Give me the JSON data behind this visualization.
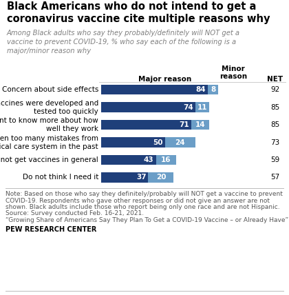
{
  "title": "Black Americans who do not intend to get a\ncoronavirus vaccine cite multiple reasons why",
  "subtitle": "Among Black adults who say they probably/definitely will NOT get a\nvaccine to prevent COVID-19, % who say each of the following is a\nmajor/minor reason why",
  "categories": [
    "Concern about side effects",
    "The vaccines were developed and\ntested too quickly",
    "Want to know more about how\nwell they work",
    "Have seen too many mistakes from\nthe medical care system in the past",
    "Do not get vaccines in general",
    "Do not think I need it"
  ],
  "major_values": [
    84,
    74,
    71,
    50,
    43,
    37
  ],
  "minor_values": [
    8,
    11,
    14,
    24,
    16,
    20
  ],
  "net_values": [
    92,
    85,
    85,
    73,
    59,
    57
  ],
  "major_color": "#1F3F7A",
  "minor_color": "#6B9EC7",
  "note_line1": "Note: Based on those who say they definitely/probably will NOT get a vaccine to prevent",
  "note_line2": "COVID-19. Respondents who gave other responses or did not give an answer are not",
  "note_line3": "shown. Black adults include those who report being only one race and are not Hispanic.",
  "note_line4": "Source: Survey conducted Feb. 16-21, 2021.",
  "note_line5": "“Growing Share of Americans Say They Plan To Get a COVID-19 Vaccine – or Already Have”",
  "source_bold": "PEW RESEARCH CENTER",
  "background_color": "#FFFFFF",
  "title_fontsize": 10.5,
  "subtitle_fontsize": 7.2,
  "label_fontsize": 7.5,
  "bar_label_fontsize": 7.5,
  "header_fontsize": 7.5,
  "net_fontsize": 7.5,
  "note_fontsize": 6.5
}
